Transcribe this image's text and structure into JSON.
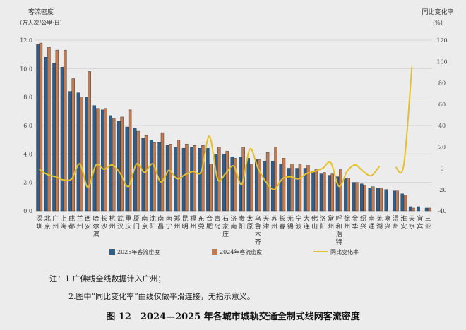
{
  "chart_data": {
    "type": "bar",
    "title": "图 12　2024—2025 年各城市城轨交通全制式线网客流密度",
    "ylabel": [
      "客流密度",
      "（万人次/公里·日）"
    ],
    "y2label": [
      "同比变化率",
      "（%）"
    ],
    "ylim": [
      0,
      12
    ],
    "yticks": [
      "0.0",
      "2.0",
      "4.0",
      "6.0",
      "8.0",
      "10.0",
      "12.0"
    ],
    "y2lim": [
      -40,
      120
    ],
    "y2ticks": [
      "-40",
      "-20",
      "0",
      "20",
      "40",
      "60",
      "80",
      "100",
      "120"
    ],
    "grid": true,
    "legend_placement": "bottom",
    "categories": [
      "深圳",
      "北京",
      "广州",
      "上海",
      "成都",
      "兰州",
      "西安",
      "哈尔滨",
      "长沙",
      "杭州",
      "武汉",
      "重庆",
      "厦门",
      "南京",
      "沈阳",
      "南昌",
      "南宁",
      "郑州",
      "昆明",
      "福州",
      "东莞",
      "合肥",
      "青岛",
      "石家庄",
      "济南",
      "贵阳",
      "太原",
      "乌鲁木齐",
      "天津",
      "苏州",
      "长春",
      "无锡",
      "宁波",
      "大连",
      "佛山",
      "洛阳",
      "常州",
      "呼和浩特",
      "徐州",
      "金华",
      "绍兴",
      "南通",
      "芜湖",
      "嘉兴",
      "温州",
      "淮安",
      "天水",
      "宜宾",
      "三亚"
    ],
    "series": [
      {
        "name": "2025年客流密度",
        "kind": "bar",
        "color": "#2d5f8e",
        "values": [
          11.7,
          10.8,
          10.4,
          10.1,
          8.4,
          8.3,
          8.0,
          7.4,
          7.1,
          6.7,
          6.3,
          5.9,
          5.8,
          5.1,
          5.0,
          4.8,
          4.6,
          4.5,
          4.4,
          4.5,
          4.4,
          4.4,
          4.0,
          4.0,
          3.8,
          3.8,
          3.7,
          3.6,
          3.5,
          3.5,
          3.3,
          3.0,
          3.0,
          3.0,
          2.8,
          2.6,
          2.5,
          2.4,
          2.3,
          2.0,
          1.9,
          1.6,
          1.6,
          1.5,
          1.4,
          1.2,
          0.3,
          0.3,
          0.2
        ]
      },
      {
        "name": "2024年客流密度",
        "kind": "bar",
        "color": "#c47a4c",
        "values": [
          11.8,
          11.5,
          11.3,
          11.3,
          9.3,
          8.0,
          9.8,
          7.2,
          7.2,
          6.5,
          6.6,
          7.1,
          5.6,
          5.3,
          4.8,
          5.5,
          4.7,
          5.0,
          4.7,
          4.6,
          4.6,
          3.3,
          4.5,
          4.2,
          3.7,
          4.5,
          3.3,
          3.6,
          4.1,
          4.5,
          3.7,
          3.3,
          3.3,
          3.2,
          2.9,
          2.7,
          2.6,
          2.9,
          2.3,
          2.0,
          1.8,
          1.7,
          1.6,
          null,
          1.4,
          1.1,
          0.2,
          null,
          0.2
        ]
      },
      {
        "name": "同比变化率",
        "kind": "line",
        "color": "#e6c02a",
        "axis": "right",
        "values": [
          -1,
          -6,
          -8,
          -11,
          -10,
          4,
          -18,
          3,
          -1,
          3,
          -5,
          -17,
          4,
          -4,
          4,
          -13,
          -2,
          -10,
          -6,
          -3,
          -3,
          30,
          -10,
          -5,
          2,
          -15,
          18,
          0,
          -13,
          -20,
          -10,
          -8,
          -10,
          -5,
          -3,
          0,
          5,
          -17,
          -3,
          3,
          -3,
          -7,
          2,
          null,
          1,
          3,
          95,
          null,
          null
        ]
      }
    ],
    "notes": [
      "注：1.广佛线全线数据计入广州；",
      "2.图中“同比变化率”曲线仅做平滑连接，无指示意义。"
    ]
  }
}
